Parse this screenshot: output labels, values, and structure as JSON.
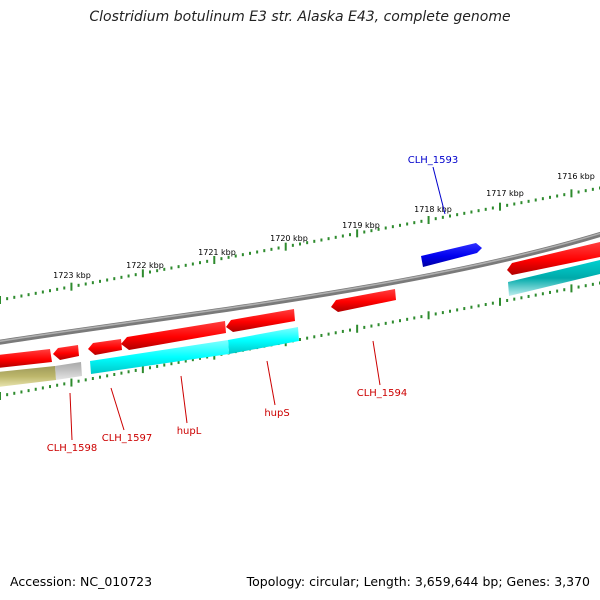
{
  "title": "Clostridium botulinum E3 str. Alaska E43, complete genome",
  "footer": {
    "accession": "Accession: NC_010723",
    "summary": "Topology: circular; Length: 3,659,644 bp; Genes: 3,370"
  },
  "colors": {
    "backbone": "#8a8a8a",
    "ruler": "#2e8b2e",
    "gene_red": "#ff0000",
    "gene_cyan": "#00ffff",
    "gene_teal": "#00b3b3",
    "gene_olive": "#bdb76b",
    "gene_gray": "#c0c0c0",
    "gene_blue": "#0000ee",
    "label_red": "#cc0000",
    "label_blue": "#0000cc"
  },
  "ruler_outer": {
    "ticks": [
      {
        "label": "1723 kbp"
      },
      {
        "label": "1722 kbp"
      },
      {
        "label": "1721 kbp"
      },
      {
        "label": "1720 kbp"
      },
      {
        "label": "1719 kbp"
      },
      {
        "label": "1718 kbp"
      },
      {
        "label": "1717 kbp"
      },
      {
        "label": "1716 kbp"
      }
    ]
  },
  "gene_labels": [
    {
      "name": "CLH_1593",
      "color": "blue"
    },
    {
      "name": "CLH_1594",
      "color": "red"
    },
    {
      "name": "hupS",
      "color": "red"
    },
    {
      "name": "hupL",
      "color": "red"
    },
    {
      "name": "CLH_1597",
      "color": "red"
    },
    {
      "name": "CLH_1598",
      "color": "red"
    }
  ]
}
